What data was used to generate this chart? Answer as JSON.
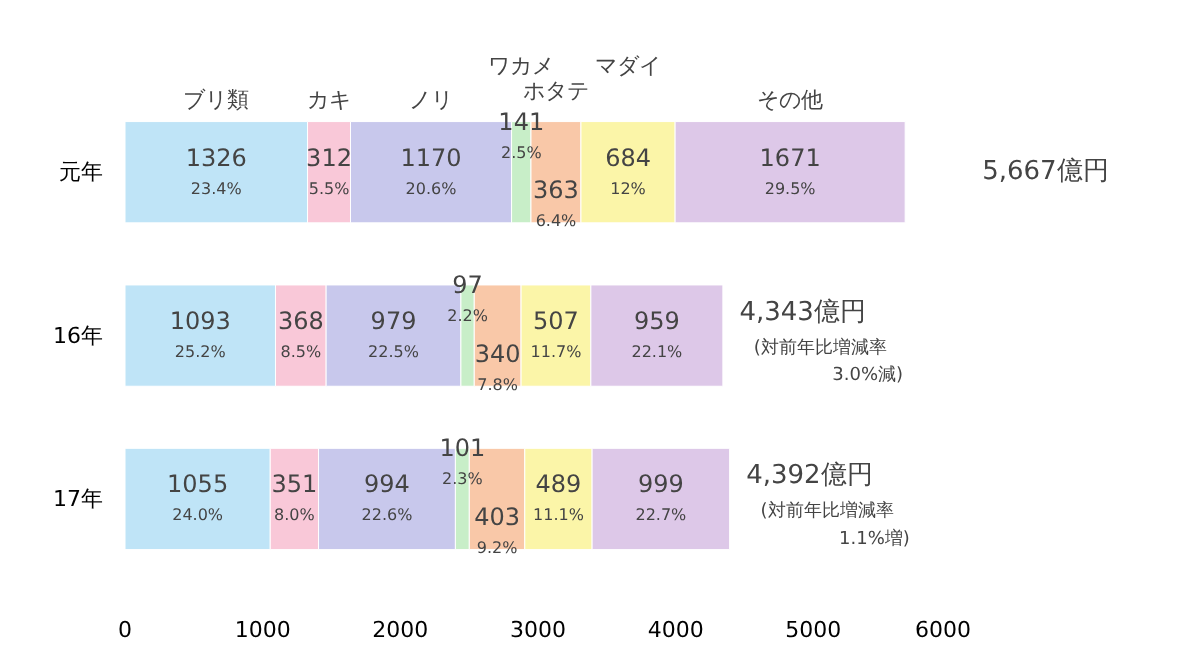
{
  "chart_data": {
    "type": "bar",
    "orientation": "horizontal",
    "stacked": true,
    "categories": [
      "元年",
      "16年",
      "17年"
    ],
    "xlim": [
      0,
      6000
    ],
    "xticks": [
      0,
      1000,
      2000,
      3000,
      4000,
      5000,
      6000
    ],
    "grid": false,
    "series": [
      {
        "name": "ブリ類",
        "color": "#bfe4f7",
        "values": [
          1326,
          1093,
          1055
        ],
        "value_labels": [
          "1326\n23.4%",
          "1093\n25.2%",
          "1055\n24.0%"
        ]
      },
      {
        "name": "カキ",
        "color": "#f9c8d8",
        "values": [
          312,
          368,
          351
        ],
        "value_labels": [
          "312\n5.5%",
          "368\n8.5%",
          "351\n8.0%"
        ]
      },
      {
        "name": "ノリ",
        "color": "#c8c8ec",
        "values": [
          1170,
          979,
          994
        ],
        "value_labels": [
          "1170\n20.6%",
          "979\n22.5%",
          "994\n22.6%"
        ]
      },
      {
        "name": "ワカメ",
        "color": "#c8eec8",
        "values": [
          141,
          97,
          101
        ],
        "value_labels": [
          "141\n2.5%",
          "97\n2.2%",
          "101\n2.3%"
        ]
      },
      {
        "name": "ホタテ",
        "color": "#f9c8a8",
        "values": [
          363,
          340,
          403
        ],
        "value_labels": [
          "363\n6.4%",
          "340\n7.8%",
          "403\n9.2%"
        ]
      },
      {
        "name": "マダイ",
        "color": "#fbf5a8",
        "values": [
          684,
          507,
          489
        ],
        "value_labels": [
          "684\n12%",
          "507\n11.7%",
          "489\n11.1%"
        ]
      },
      {
        "name": "その他",
        "color": "#ddc8e8",
        "values": [
          1671,
          959,
          999
        ],
        "value_labels": [
          "1671\n29.5%",
          "959\n22.1%",
          "999\n22.7%"
        ]
      }
    ],
    "totals": [
      "5,667億円",
      "4,343億円\n(対前年比増減率\n3.0%減)",
      "4,392億円\n(対前年比増減率\n1.1%増)"
    ]
  }
}
